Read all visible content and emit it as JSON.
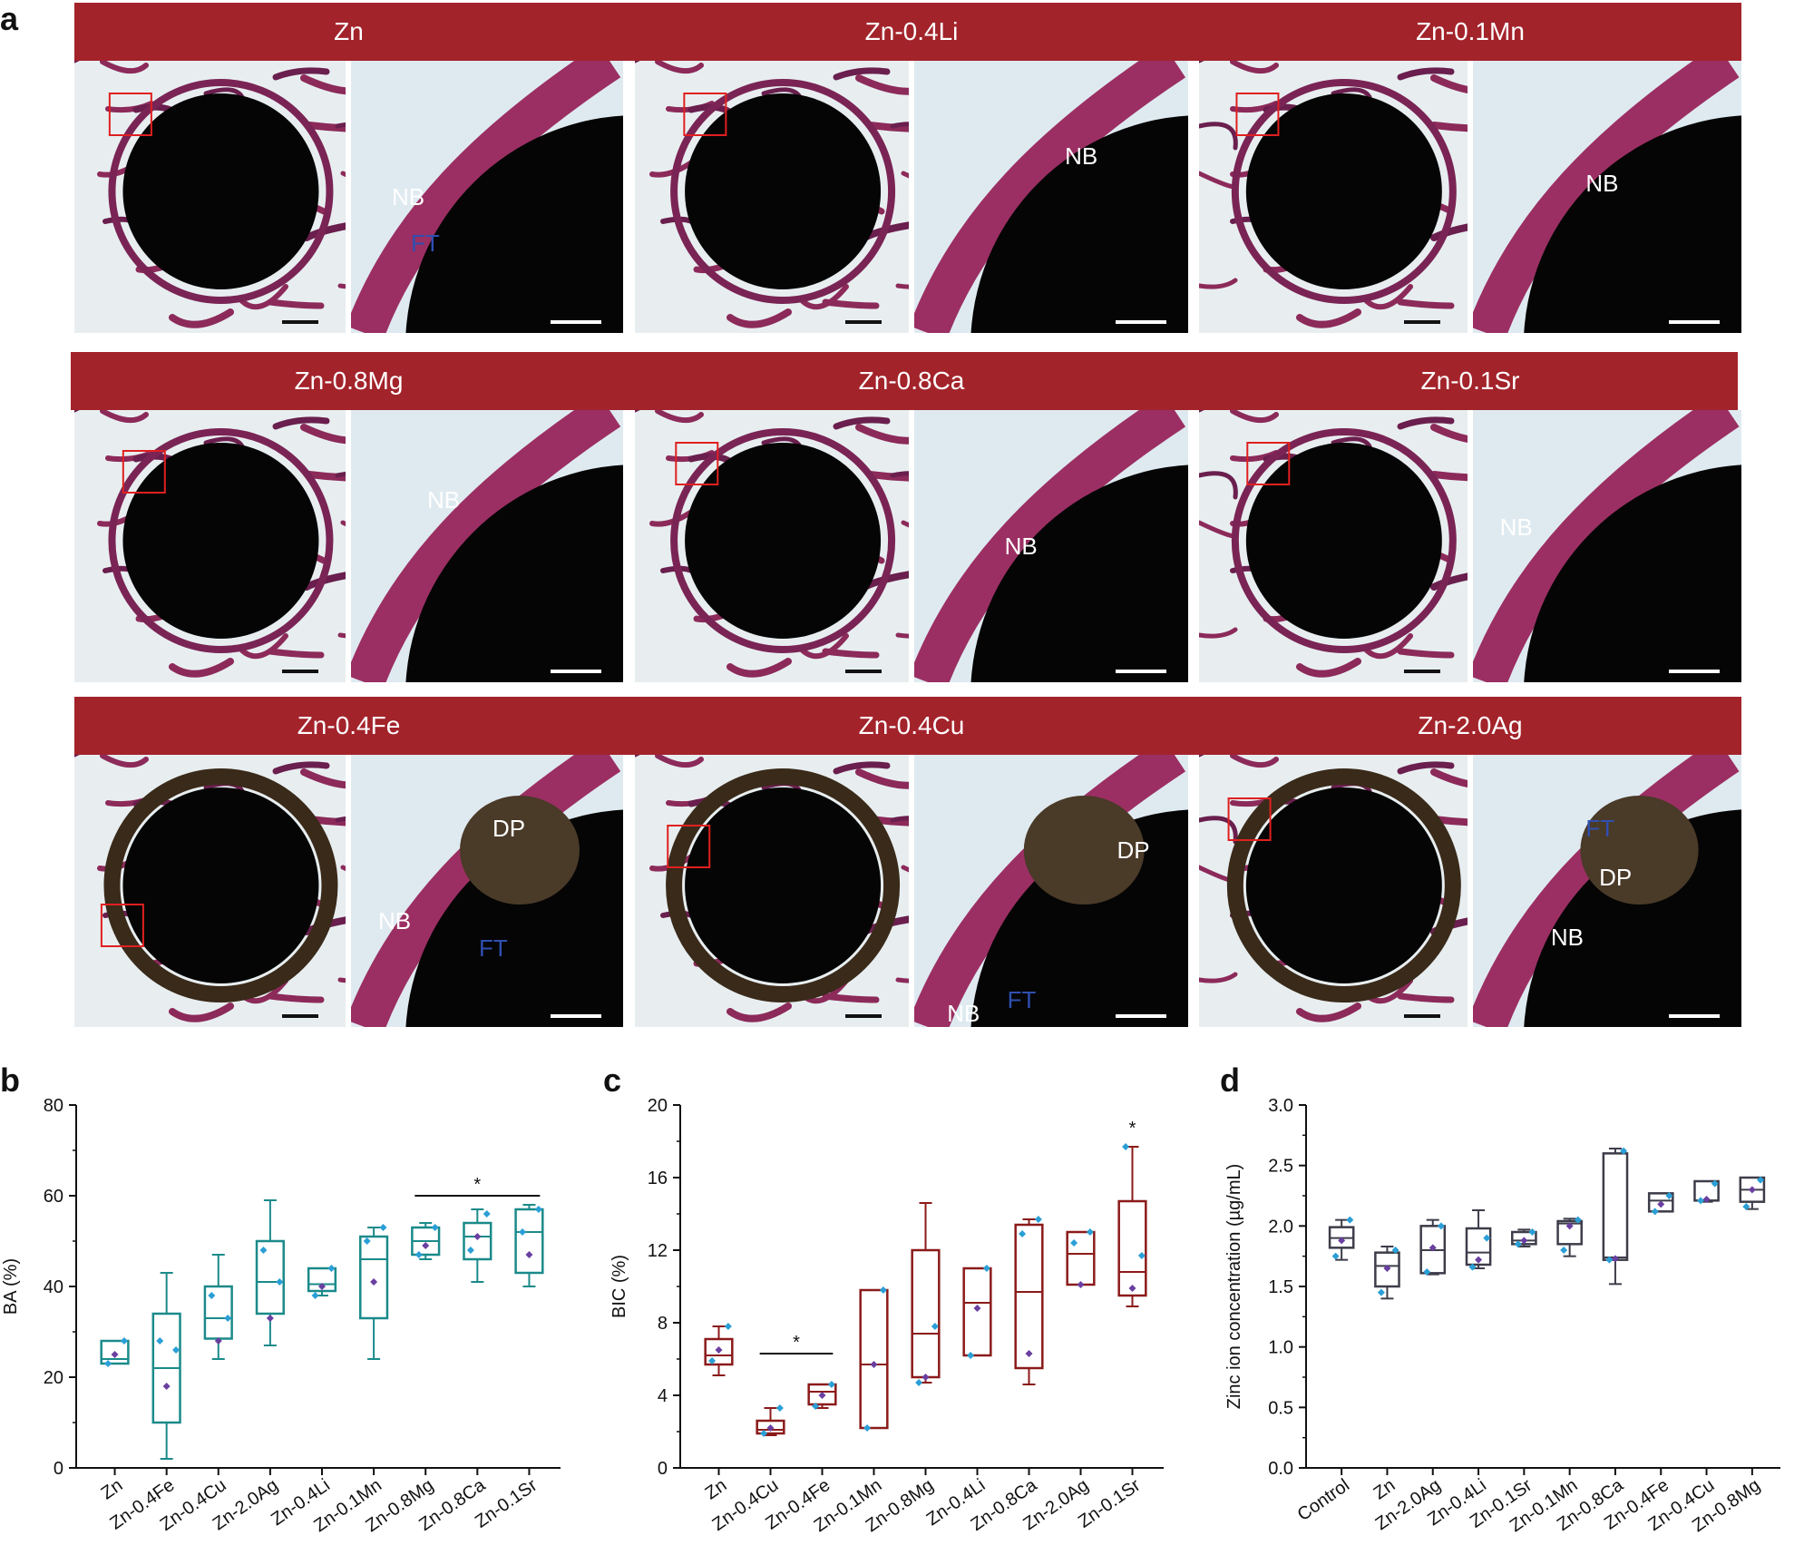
{
  "panel_letters": {
    "a": "a",
    "b": "b",
    "c": "c",
    "d": "d"
  },
  "micrographs": [
    {
      "title": "Zn",
      "labels": [
        {
          "text": "NB",
          "color": "white"
        },
        {
          "text": "FT",
          "color": "blue"
        }
      ]
    },
    {
      "title": "Zn-0.4Li",
      "labels": [
        {
          "text": "NB",
          "color": "white"
        }
      ]
    },
    {
      "title": "Zn-0.1Mn",
      "labels": [
        {
          "text": "NB",
          "color": "white"
        }
      ]
    },
    {
      "title": "Zn-0.8Mg",
      "labels": [
        {
          "text": "NB",
          "color": "white"
        }
      ]
    },
    {
      "title": "Zn-0.8Ca",
      "labels": [
        {
          "text": "NB",
          "color": "white"
        }
      ]
    },
    {
      "title": "Zn-0.1Sr",
      "labels": [
        {
          "text": "NB",
          "color": "white"
        }
      ]
    },
    {
      "title": "Zn-0.4Fe",
      "labels": [
        {
          "text": "DP",
          "color": "white"
        },
        {
          "text": "NB",
          "color": "white"
        },
        {
          "text": "FT",
          "color": "blue"
        }
      ]
    },
    {
      "title": "Zn-0.4Cu",
      "labels": [
        {
          "text": "DP",
          "color": "white"
        },
        {
          "text": "NB",
          "color": "white"
        },
        {
          "text": "FT",
          "color": "blue"
        }
      ]
    },
    {
      "title": "Zn-2.0Ag",
      "labels": [
        {
          "text": "FT",
          "color": "blue"
        },
        {
          "text": "DP",
          "color": "white"
        },
        {
          "text": "NB",
          "color": "white"
        }
      ]
    }
  ],
  "colors": {
    "bar": "#a3232b",
    "chart_b": "#1b8a8a",
    "chart_c": "#8b1a1a",
    "chart_d": "#3d3d4a",
    "point": "#2a9fd6",
    "point_alt": "#6a3fa0"
  },
  "chart_data": [
    {
      "type": "box",
      "panel": "b",
      "ylabel": "BA (%)",
      "ylim": [
        0,
        80
      ],
      "yticks": [
        0,
        20,
        40,
        60,
        80
      ],
      "categories": [
        "Zn",
        "Zn-0.4Fe",
        "Zn-0.4Cu",
        "Zn-2.0Ag",
        "Zn-0.4Li",
        "Zn-0.1Mn",
        "Zn-0.8Mg",
        "Zn-0.8Ca",
        "Zn-0.1Sr"
      ],
      "boxes": [
        {
          "min": 23,
          "q1": 23,
          "median": 24,
          "q3": 28,
          "max": 28,
          "points": [
            28,
            25,
            23
          ]
        },
        {
          "min": 2,
          "q1": 10,
          "median": 22,
          "q3": 34,
          "max": 43,
          "points": [
            26,
            18,
            28
          ]
        },
        {
          "min": 24,
          "q1": 28.5,
          "median": 33,
          "q3": 40,
          "max": 47,
          "points": [
            33,
            28,
            38
          ]
        },
        {
          "min": 27,
          "q1": 34,
          "median": 41,
          "q3": 50,
          "max": 59,
          "points": [
            41,
            33,
            48
          ]
        },
        {
          "min": 38,
          "q1": 39,
          "median": 40.5,
          "q3": 44,
          "max": 44,
          "points": [
            44,
            40,
            38
          ]
        },
        {
          "min": 24,
          "q1": 33,
          "median": 46,
          "q3": 51,
          "max": 53,
          "points": [
            53,
            41,
            50
          ]
        },
        {
          "min": 46,
          "q1": 47,
          "median": 50,
          "q3": 53,
          "max": 54,
          "points": [
            53,
            49,
            47
          ]
        },
        {
          "min": 41,
          "q1": 46,
          "median": 51,
          "q3": 54,
          "max": 57,
          "points": [
            56,
            51,
            48
          ]
        },
        {
          "min": 40,
          "q1": 43,
          "median": 52,
          "q3": 57,
          "max": 58,
          "points": [
            57,
            47,
            52
          ]
        }
      ],
      "significance": {
        "from": "Zn-0.8Mg",
        "to": "Zn-0.1Sr",
        "y": 60,
        "label": "*"
      }
    },
    {
      "type": "box",
      "panel": "c",
      "ylabel": "BIC (%)",
      "ylim": [
        0,
        20
      ],
      "yticks": [
        0,
        4,
        8,
        12,
        16,
        20
      ],
      "categories": [
        "Zn",
        "Zn-0.4Cu",
        "Zn-0.4Fe",
        "Zn-0.1Mn",
        "Zn-0.8Mg",
        "Zn-0.4Li",
        "Zn-0.8Ca",
        "Zn-2.0Ag",
        "Zn-0.1Sr"
      ],
      "boxes": [
        {
          "min": 5.1,
          "q1": 5.7,
          "median": 6.2,
          "q3": 7.1,
          "max": 7.8,
          "points": [
            7.8,
            6.5,
            5.9
          ]
        },
        {
          "min": 1.8,
          "q1": 1.9,
          "median": 2.1,
          "q3": 2.6,
          "max": 3.3,
          "points": [
            3.3,
            2.2,
            1.9
          ]
        },
        {
          "min": 3.3,
          "q1": 3.5,
          "median": 4.2,
          "q3": 4.6,
          "max": 4.6,
          "points": [
            4.6,
            4.0,
            3.4
          ]
        },
        {
          "min": 2.2,
          "q1": 2.2,
          "median": 5.7,
          "q3": 9.8,
          "max": 9.8,
          "points": [
            9.8,
            5.7,
            2.2
          ]
        },
        {
          "min": 4.7,
          "q1": 5.0,
          "median": 7.4,
          "q3": 12.0,
          "max": 14.6,
          "points": [
            7.8,
            5.0,
            4.7
          ]
        },
        {
          "min": 6.2,
          "q1": 6.2,
          "median": 9.1,
          "q3": 11.0,
          "max": 11.0,
          "points": [
            11.0,
            8.8,
            6.2
          ]
        },
        {
          "min": 4.6,
          "q1": 5.5,
          "median": 9.7,
          "q3": 13.4,
          "max": 13.7,
          "points": [
            13.7,
            6.3,
            12.9
          ]
        },
        {
          "min": 10.1,
          "q1": 10.1,
          "median": 11.8,
          "q3": 13.0,
          "max": 13.0,
          "points": [
            13.0,
            10.1,
            12.4
          ]
        },
        {
          "min": 8.9,
          "q1": 9.5,
          "median": 10.8,
          "q3": 14.7,
          "max": 17.7,
          "points": [
            11.7,
            9.9,
            17.7
          ]
        }
      ],
      "significance": [
        {
          "from": "Zn-0.4Cu",
          "to": "Zn-0.4Fe",
          "y": 6.3,
          "label": "*"
        },
        {
          "at": "Zn-0.1Sr",
          "y": 18.4,
          "label": "*"
        }
      ]
    },
    {
      "type": "box",
      "panel": "d",
      "ylabel": "Zinc ion concentration (µg/mL)",
      "ylim": [
        0,
        3.0
      ],
      "yticks": [
        "0.0",
        "0.5",
        "1.0",
        "1.5",
        "2.0",
        "2.5",
        "3.0"
      ],
      "categories": [
        "Control",
        "Zn",
        "Zn-2.0Ag",
        "Zn-0.4Li",
        "Zn-0.1Sr",
        "Zn-0.1Mn",
        "Zn-0.8Ca",
        "Zn-0.4Fe",
        "Zn-0.4Cu",
        "Zn-0.8Mg"
      ],
      "boxes": [
        {
          "min": 1.72,
          "q1": 1.82,
          "median": 1.9,
          "q3": 1.99,
          "max": 2.05,
          "points": [
            2.05,
            1.88,
            1.75
          ]
        },
        {
          "min": 1.4,
          "q1": 1.5,
          "median": 1.67,
          "q3": 1.78,
          "max": 1.83,
          "points": [
            1.8,
            1.65,
            1.45
          ]
        },
        {
          "min": 1.6,
          "q1": 1.61,
          "median": 1.8,
          "q3": 2.0,
          "max": 2.05,
          "points": [
            2.0,
            1.82,
            1.62
          ]
        },
        {
          "min": 1.65,
          "q1": 1.68,
          "median": 1.78,
          "q3": 1.98,
          "max": 2.13,
          "points": [
            1.9,
            1.72,
            1.66
          ]
        },
        {
          "min": 1.83,
          "q1": 1.85,
          "median": 1.88,
          "q3": 1.95,
          "max": 1.97,
          "points": [
            1.95,
            1.88,
            1.85
          ]
        },
        {
          "min": 1.75,
          "q1": 1.85,
          "median": 2.02,
          "q3": 2.04,
          "max": 2.06,
          "points": [
            2.05,
            2.0,
            1.8
          ]
        },
        {
          "min": 1.52,
          "q1": 1.72,
          "median": 1.74,
          "q3": 2.6,
          "max": 2.64,
          "points": [
            2.62,
            1.73,
            1.72
          ]
        },
        {
          "min": 2.12,
          "q1": 2.12,
          "median": 2.21,
          "q3": 2.27,
          "max": 2.27,
          "points": [
            2.25,
            2.18,
            2.12
          ]
        },
        {
          "min": 2.2,
          "q1": 2.21,
          "median": 2.21,
          "q3": 2.37,
          "max": 2.37,
          "points": [
            2.35,
            2.22,
            2.21
          ]
        },
        {
          "min": 2.14,
          "q1": 2.2,
          "median": 2.3,
          "q3": 2.4,
          "max": 2.4,
          "points": [
            2.38,
            2.3,
            2.16
          ]
        }
      ]
    }
  ]
}
